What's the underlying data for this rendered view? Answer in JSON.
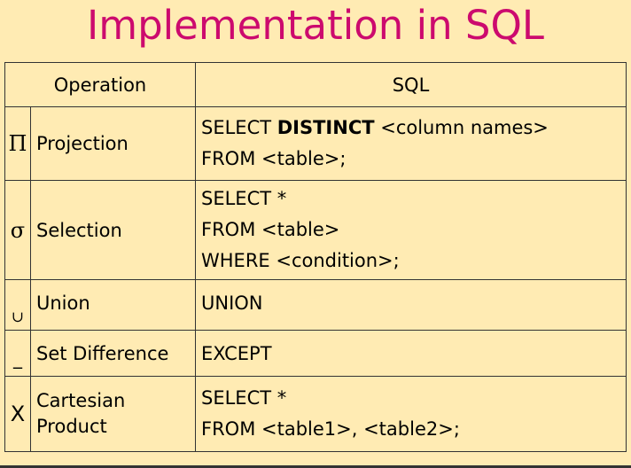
{
  "title": "Implementation in SQL",
  "table": {
    "headers": {
      "operation": "Operation",
      "sql": "SQL"
    },
    "rows": [
      {
        "symbol": "Π",
        "operation": "Projection",
        "sql_lines": [
          [
            "SELECT ",
            "DISTINCT",
            " <column names>"
          ],
          [
            "FROM <table>;"
          ]
        ]
      },
      {
        "symbol": "σ",
        "operation": "Selection",
        "sql_lines": [
          [
            "SELECT *"
          ],
          [
            "FROM <table>"
          ],
          [
            "WHERE <condition>;"
          ]
        ]
      },
      {
        "symbol": "∪",
        "operation": "Union",
        "sql_lines": [
          [
            "UNION"
          ]
        ]
      },
      {
        "symbol": "_",
        "operation": "Set Difference",
        "sql_lines": [
          [
            "EXCEPT"
          ]
        ]
      },
      {
        "symbol": "X",
        "operation": "Cartesian Product",
        "sql_lines": [
          [
            "SELECT *"
          ],
          [
            "FROM <table1>, <table2>;"
          ]
        ]
      }
    ]
  },
  "colors": {
    "background": "#FFEBB3",
    "title": "#CC0A6E",
    "border": "#333333"
  }
}
